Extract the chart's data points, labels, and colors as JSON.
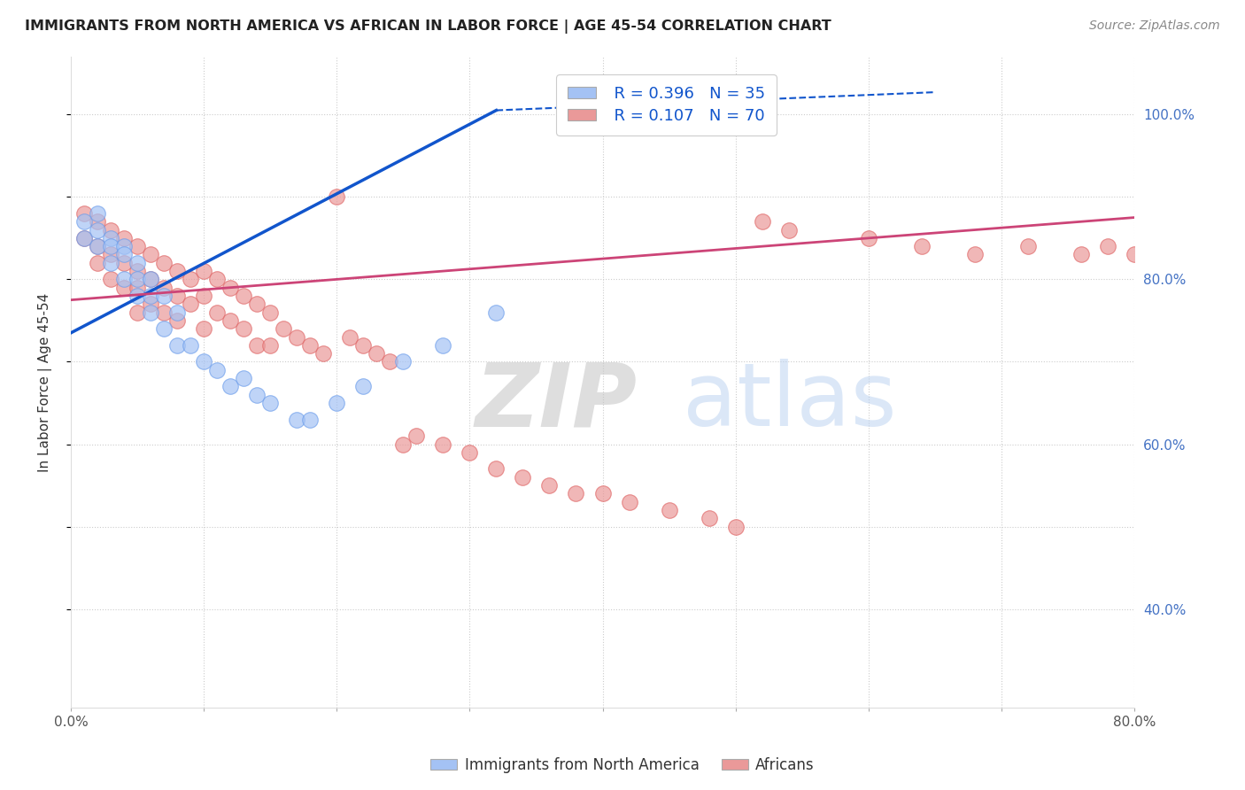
{
  "title": "IMMIGRANTS FROM NORTH AMERICA VS AFRICAN IN LABOR FORCE | AGE 45-54 CORRELATION CHART",
  "source": "Source: ZipAtlas.com",
  "ylabel": "In Labor Force | Age 45-54",
  "xlim": [
    0.0,
    0.8
  ],
  "ylim": [
    0.28,
    1.07
  ],
  "blue_color": "#a4c2f4",
  "blue_edge_color": "#6d9eeb",
  "pink_color": "#ea9999",
  "pink_edge_color": "#e06666",
  "blue_line_color": "#1155cc",
  "pink_line_color": "#cc4477",
  "legend_R_blue": "R = 0.396",
  "legend_N_blue": "N = 35",
  "legend_R_pink": "R = 0.107",
  "legend_N_pink": "N = 70",
  "blue_scatter_x": [
    0.01,
    0.01,
    0.02,
    0.02,
    0.02,
    0.03,
    0.03,
    0.03,
    0.04,
    0.04,
    0.04,
    0.05,
    0.05,
    0.05,
    0.06,
    0.06,
    0.06,
    0.07,
    0.07,
    0.08,
    0.08,
    0.09,
    0.1,
    0.11,
    0.12,
    0.13,
    0.14,
    0.15,
    0.17,
    0.18,
    0.2,
    0.22,
    0.25,
    0.28,
    0.32
  ],
  "blue_scatter_y": [
    0.87,
    0.85,
    0.88,
    0.86,
    0.84,
    0.85,
    0.84,
    0.82,
    0.84,
    0.83,
    0.8,
    0.82,
    0.8,
    0.78,
    0.8,
    0.78,
    0.76,
    0.78,
    0.74,
    0.76,
    0.72,
    0.72,
    0.7,
    0.69,
    0.67,
    0.68,
    0.66,
    0.65,
    0.63,
    0.63,
    0.65,
    0.67,
    0.7,
    0.72,
    0.76
  ],
  "pink_scatter_x": [
    0.01,
    0.01,
    0.02,
    0.02,
    0.02,
    0.03,
    0.03,
    0.03,
    0.04,
    0.04,
    0.04,
    0.05,
    0.05,
    0.05,
    0.05,
    0.06,
    0.06,
    0.06,
    0.07,
    0.07,
    0.07,
    0.08,
    0.08,
    0.08,
    0.09,
    0.09,
    0.1,
    0.1,
    0.1,
    0.11,
    0.11,
    0.12,
    0.12,
    0.13,
    0.13,
    0.14,
    0.14,
    0.15,
    0.15,
    0.16,
    0.17,
    0.18,
    0.19,
    0.2,
    0.21,
    0.22,
    0.23,
    0.24,
    0.25,
    0.26,
    0.28,
    0.3,
    0.32,
    0.34,
    0.36,
    0.38,
    0.4,
    0.42,
    0.45,
    0.48,
    0.5,
    0.52,
    0.54,
    0.6,
    0.64,
    0.68,
    0.72,
    0.76,
    0.78,
    0.8
  ],
  "pink_scatter_y": [
    0.88,
    0.85,
    0.87,
    0.84,
    0.82,
    0.86,
    0.83,
    0.8,
    0.85,
    0.82,
    0.79,
    0.84,
    0.81,
    0.79,
    0.76,
    0.83,
    0.8,
    0.77,
    0.82,
    0.79,
    0.76,
    0.81,
    0.78,
    0.75,
    0.8,
    0.77,
    0.81,
    0.78,
    0.74,
    0.8,
    0.76,
    0.79,
    0.75,
    0.78,
    0.74,
    0.77,
    0.72,
    0.76,
    0.72,
    0.74,
    0.73,
    0.72,
    0.71,
    0.9,
    0.73,
    0.72,
    0.71,
    0.7,
    0.6,
    0.61,
    0.6,
    0.59,
    0.57,
    0.56,
    0.55,
    0.54,
    0.54,
    0.53,
    0.52,
    0.51,
    0.5,
    0.87,
    0.86,
    0.85,
    0.84,
    0.83,
    0.84,
    0.83,
    0.84,
    0.83
  ],
  "blue_line_x0": 0.0,
  "blue_line_x1": 0.32,
  "blue_line_y0": 0.735,
  "blue_line_y1": 1.005,
  "blue_line_dashed_x0": 0.32,
  "blue_line_dashed_x1": 0.65,
  "blue_line_dashed_y0": 1.005,
  "blue_line_dashed_y1": 1.027,
  "pink_line_x0": 0.0,
  "pink_line_x1": 0.8,
  "pink_line_y0": 0.775,
  "pink_line_y1": 0.875
}
